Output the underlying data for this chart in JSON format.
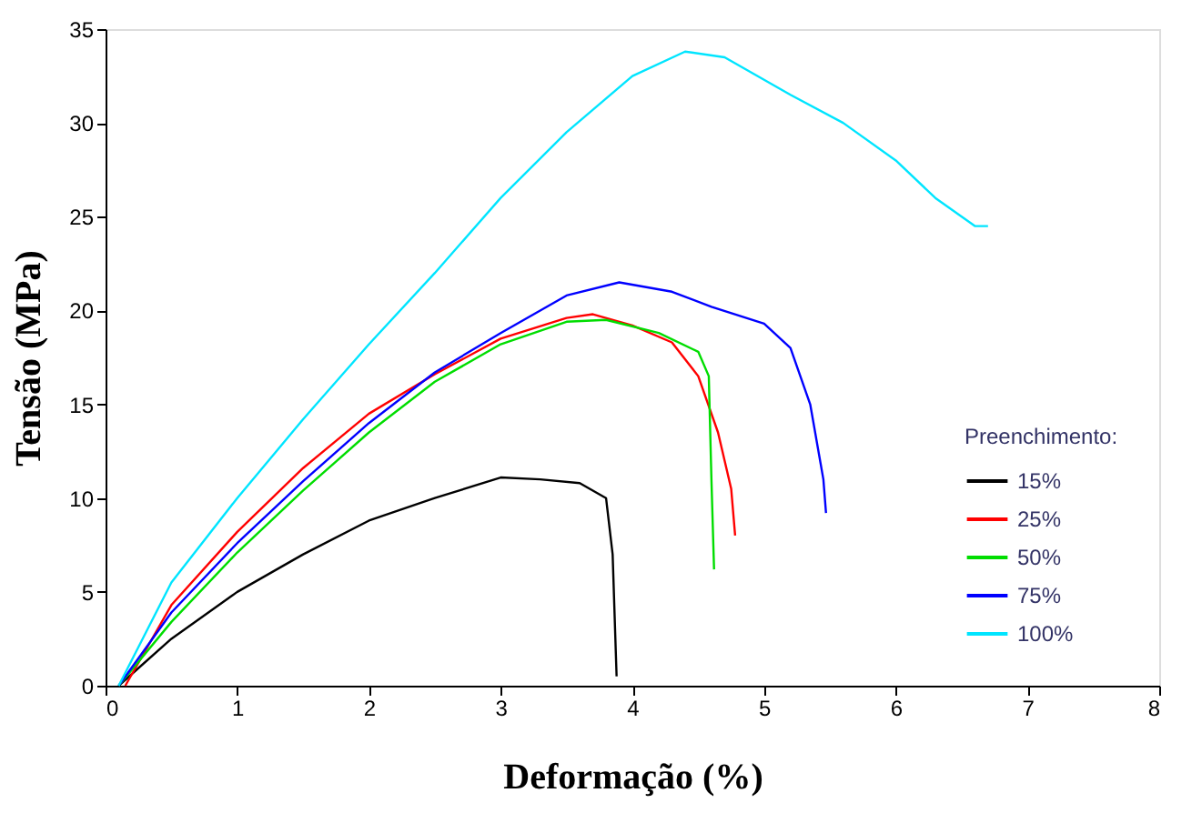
{
  "chart_data": {
    "type": "line",
    "xlabel": "Deformação (%)",
    "ylabel": "Tensão (MPa)",
    "legend_title": "Preenchimento:",
    "legend": "bottom right",
    "grid": false,
    "line_style": "solid",
    "marker": "none",
    "xlim": [
      0,
      8
    ],
    "xticks": [
      0,
      1,
      2,
      3,
      4,
      5,
      6,
      7,
      8
    ],
    "ylim": [
      0,
      35
    ],
    "yticks": [
      0,
      5,
      10,
      15,
      20,
      25,
      30,
      35
    ],
    "series": [
      {
        "name": "15%",
        "color": "#000000",
        "x": [
          0.1,
          0.5,
          1,
          1.5,
          2,
          2.5,
          3,
          3.3,
          3.6,
          3.8,
          3.85,
          3.88
        ],
        "values": [
          0,
          2.5,
          5,
          7,
          8.8,
          10,
          11.1,
          11,
          10.8,
          10,
          7,
          0.5
        ]
      },
      {
        "name": "25%",
        "color": "#ff0000",
        "x": [
          0.15,
          0.5,
          1,
          1.5,
          2,
          2.5,
          3,
          3.5,
          3.7,
          4,
          4.3,
          4.5,
          4.65,
          4.75,
          4.78
        ],
        "values": [
          0,
          4.3,
          8.2,
          11.6,
          14.5,
          16.6,
          18.5,
          19.6,
          19.8,
          19.2,
          18.3,
          16.5,
          13.5,
          10.5,
          8
        ]
      },
      {
        "name": "50%",
        "color": "#00dd00",
        "x": [
          0.1,
          0.5,
          1,
          1.5,
          2,
          2.5,
          3,
          3.5,
          3.8,
          4.2,
          4.5,
          4.58,
          4.6,
          4.62
        ],
        "values": [
          0,
          3.4,
          7.1,
          10.4,
          13.5,
          16.2,
          18.2,
          19.4,
          19.5,
          18.8,
          17.8,
          16.5,
          11,
          6.2
        ]
      },
      {
        "name": "75%",
        "color": "#0000ff",
        "x": [
          0.1,
          0.5,
          1,
          1.5,
          2,
          2.5,
          3,
          3.5,
          3.9,
          4.3,
          4.6,
          5,
          5.2,
          5.35,
          5.45,
          5.47
        ],
        "values": [
          0,
          3.9,
          7.6,
          10.9,
          14.0,
          16.7,
          18.8,
          20.8,
          21.5,
          21,
          20.2,
          19.3,
          18,
          15,
          11,
          9.2
        ]
      },
      {
        "name": "100%",
        "color": "#00e5ff",
        "x": [
          0.1,
          0.5,
          1,
          1.5,
          2,
          2.5,
          3,
          3.5,
          4,
          4.4,
          4.7,
          5.2,
          5.6,
          6,
          6.3,
          6.6,
          6.7
        ],
        "values": [
          0,
          5.5,
          10,
          14.2,
          18.2,
          22,
          26,
          29.5,
          32.5,
          33.8,
          33.5,
          31.5,
          30,
          28,
          26,
          24.5,
          24.5
        ]
      }
    ]
  }
}
